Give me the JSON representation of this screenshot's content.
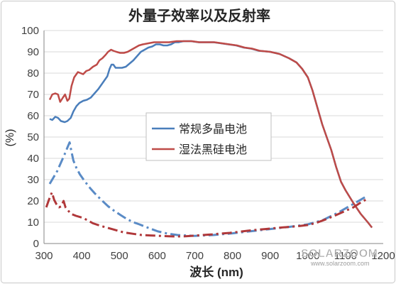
{
  "chart_data": {
    "type": "line",
    "title": "外量子效率以及反射率",
    "xlabel": "波长 (nm)",
    "ylabel": "(%)",
    "xlim": [
      300,
      1200
    ],
    "ylim": [
      0,
      100
    ],
    "xticks": [
      300,
      400,
      500,
      600,
      700,
      800,
      900,
      1000,
      1100,
      1200
    ],
    "yticks": [
      0,
      10,
      20,
      30,
      40,
      50,
      60,
      70,
      80,
      90,
      100
    ],
    "grid": "horizontal",
    "legend": "center",
    "series": [
      {
        "name": "常规多晶电池",
        "color": "#4a7ebb",
        "line_style": "solid",
        "x": [
          315,
          322,
          330,
          337,
          345,
          355,
          362,
          371,
          378,
          386,
          394,
          404,
          414,
          424,
          434,
          444,
          454,
          462,
          468,
          474,
          479,
          484,
          490,
          497,
          507,
          517,
          527,
          537,
          547,
          557,
          567,
          577,
          587,
          597,
          607,
          617,
          627,
          637,
          647,
          657,
          670,
          690,
          710,
          730,
          750,
          770,
          790,
          810,
          830,
          850,
          870,
          900,
          925,
          950,
          970,
          985,
          1000,
          1012,
          1025,
          1038,
          1050,
          1062,
          1075,
          1088,
          1100,
          1121,
          1140,
          1159,
          1170
        ],
        "y": [
          58.5,
          58,
          59.5,
          59,
          57.5,
          57,
          57.5,
          59,
          62,
          64.5,
          66,
          67,
          67.5,
          68.5,
          70.5,
          72.5,
          75,
          77,
          78.5,
          82,
          84,
          84,
          82.5,
          82.5,
          82.5,
          83,
          84.5,
          86,
          88,
          90,
          91,
          92,
          92.5,
          93.5,
          93.5,
          93,
          93,
          93.5,
          94.5,
          94.5,
          95,
          95,
          94.5,
          94.5,
          94.5,
          94,
          93.5,
          93,
          92,
          91.5,
          90.5,
          90,
          89,
          87,
          85,
          82,
          78,
          72,
          64,
          56,
          50,
          44,
          36,
          29,
          25,
          19,
          14,
          10,
          7.5
        ]
      },
      {
        "name": "湿法黑硅电池",
        "color": "#be4b48",
        "line_style": "solid",
        "x": [
          315,
          322,
          330,
          337,
          343,
          350,
          356,
          362,
          367,
          373,
          380,
          390,
          397,
          404,
          412,
          420,
          430,
          440,
          447,
          455,
          463,
          470,
          478,
          484,
          492,
          502,
          512,
          522,
          532,
          542,
          552,
          562,
          577,
          592,
          612,
          632,
          652,
          672,
          692,
          712,
          732,
          752,
          772,
          792,
          812,
          832,
          852,
          872,
          900,
          925,
          950,
          970,
          985,
          1000,
          1012,
          1025,
          1038,
          1050,
          1062,
          1075,
          1088,
          1100,
          1121,
          1140,
          1159,
          1170
        ],
        "y": [
          67.5,
          70,
          70.5,
          70,
          66.5,
          68.5,
          70,
          67,
          68,
          74,
          78,
          80.5,
          80,
          79.5,
          81,
          81.5,
          83,
          84,
          86,
          87,
          88.5,
          90,
          91,
          90.5,
          90,
          89.5,
          89.5,
          90,
          91,
          92,
          93,
          93.5,
          94,
          94.5,
          94.5,
          94.5,
          95,
          95,
          95,
          94.5,
          94.5,
          94.5,
          94,
          93.5,
          93,
          92,
          91.5,
          90.5,
          90,
          89,
          87,
          85,
          82,
          78,
          72,
          64,
          56,
          50,
          44,
          36,
          29,
          25,
          19,
          14,
          10,
          7.5
        ]
      },
      {
        "color": "#5a8bc6",
        "line_style": "dashdot",
        "x": [
          315,
          325,
          335,
          345,
          355,
          362,
          368,
          373,
          378,
          386,
          395,
          405,
          420,
          435,
          452,
          470,
          485,
          502,
          520,
          537,
          553,
          570,
          585,
          602,
          627,
          654,
          700,
          750,
          800,
          850,
          900,
          950,
          1000,
          1040,
          1080,
          1120,
          1159
        ],
        "y": [
          28,
          31,
          34,
          38,
          42,
          45,
          47.5,
          43,
          39,
          35.5,
          32.5,
          30,
          26.5,
          23.5,
          20.5,
          17.5,
          15.5,
          13.5,
          11.5,
          10,
          9,
          7.8,
          6.8,
          5.7,
          4.7,
          4,
          3.6,
          4,
          4.8,
          5.8,
          6.8,
          7.8,
          9,
          11,
          14.5,
          18.5,
          22.5
        ]
      },
      {
        "color": "#b0383a",
        "line_style": "dashdot",
        "x": [
          306,
          313,
          321,
          327,
          333,
          340,
          346,
          352,
          357,
          364,
          371,
          385,
          400,
          415,
          430,
          450,
          470,
          490,
          512,
          535,
          559,
          582,
          606,
          630,
          652,
          676,
          699,
          722,
          746,
          770,
          793,
          816,
          840,
          863,
          887,
          910,
          934,
          958,
          981,
          1004,
          1027,
          1050,
          1074,
          1098,
          1121,
          1138,
          1155
        ],
        "y": [
          17,
          20.5,
          24,
          20.5,
          18.5,
          17,
          17.5,
          20,
          17,
          15.5,
          14,
          13,
          12.2,
          11,
          9.5,
          8.3,
          7.3,
          6.3,
          5.2,
          4.6,
          4,
          3.8,
          3.6,
          3.4,
          3.3,
          3.4,
          3.7,
          4,
          4.3,
          4.7,
          5,
          5.5,
          6,
          6.4,
          6.8,
          7.2,
          7.6,
          7.9,
          8.3,
          8.8,
          10,
          11.5,
          13.3,
          15.2,
          17,
          19,
          20.7
        ]
      }
    ]
  },
  "watermark": {
    "brand": "SOLARZOOM",
    "url": "www.solarzoom.com"
  }
}
